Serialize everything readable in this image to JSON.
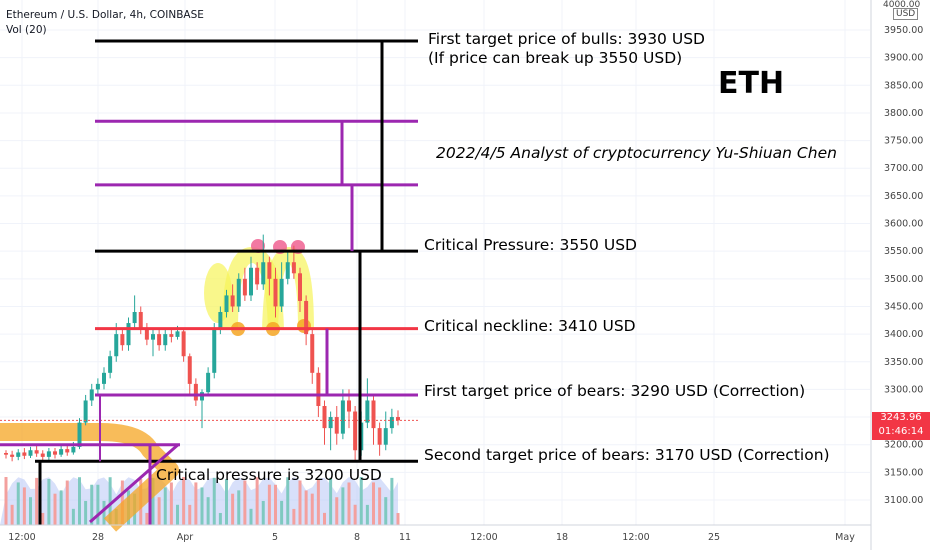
{
  "header": {
    "symbol": "Ethereum / U.S. Dollar, 4h, COINBASE",
    "volume_label": "Vol (20)"
  },
  "price_axis": {
    "currency_badge": "USD",
    "top_label": "4000.00",
    "current_price": "3243.96",
    "countdown": "01:46:14"
  },
  "annotations": {
    "eth": "ETH",
    "analyst": "2022/4/5 Analyst of cryptocurrency Yu-Shiuan Chen",
    "first_target_bulls": "First target price of bulls: 3930 USD",
    "first_target_bulls_note": "(If price can break up 3550 USD)",
    "critical_pressure": "Critical Pressure: 3550 USD",
    "critical_neckline": "Critical neckline: 3410 USD",
    "first_target_bears": "First target price of bears: 3290 USD (Correction)",
    "second_target_bears": "Second target price of bears: 3170 USD (Correction)",
    "critical_pressure_lower": "Critical pressure is 3200 USD"
  },
  "colors": {
    "up": "#26a69a",
    "down": "#ef5350",
    "volume": "#b8c6f5",
    "purple": "#9c27b0",
    "black": "#000000",
    "red_line": "#f23645",
    "orange": "#f5a623",
    "yellow": "#f7f35a",
    "price_tag": "#f23645"
  },
  "chart_data": {
    "type": "candlestick",
    "title": "Ethereum / U.S. Dollar, 4h, COINBASE",
    "y_ticks": [
      3100,
      3150,
      3200,
      3250,
      3300,
      3350,
      3400,
      3450,
      3500,
      3550,
      3600,
      3650,
      3700,
      3750,
      3800,
      3850,
      3900,
      3950
    ],
    "y_tick_labels": [
      "3100.00",
      "3150.00",
      "3200.00",
      "3250.00",
      "3300.00",
      "3350.00",
      "3400.00",
      "3450.00",
      "3500.00",
      "3550.00",
      "3600.00",
      "3650.00",
      "3700.00",
      "3750.00",
      "3800.00",
      "3850.00",
      "3900.00",
      "3950.00"
    ],
    "x_labels": [
      "12:00",
      "28",
      "Apr",
      "5",
      "8",
      "11",
      "12:00",
      "18",
      "12:00",
      "25",
      "May"
    ],
    "ylim": [
      3070,
      4000
    ],
    "candles": [
      [
        3185,
        3182,
        3190,
        3175
      ],
      [
        3182,
        3178,
        3189,
        3170
      ],
      [
        3178,
        3186,
        3192,
        3172
      ],
      [
        3186,
        3180,
        3194,
        3174
      ],
      [
        3180,
        3190,
        3196,
        3176
      ],
      [
        3190,
        3184,
        3198,
        3178
      ],
      [
        3184,
        3178,
        3190,
        3170
      ],
      [
        3178,
        3188,
        3194,
        3172
      ],
      [
        3188,
        3182,
        3194,
        3175
      ],
      [
        3182,
        3192,
        3198,
        3178
      ],
      [
        3192,
        3186,
        3199,
        3180
      ],
      [
        3186,
        3196,
        3205,
        3182
      ],
      [
        3196,
        3240,
        3248,
        3192
      ],
      [
        3240,
        3280,
        3290,
        3235
      ],
      [
        3280,
        3300,
        3310,
        3270
      ],
      [
        3300,
        3310,
        3320,
        3290
      ],
      [
        3310,
        3330,
        3340,
        3300
      ],
      [
        3330,
        3360,
        3370,
        3320
      ],
      [
        3360,
        3400,
        3420,
        3350
      ],
      [
        3400,
        3380,
        3410,
        3370
      ],
      [
        3380,
        3420,
        3430,
        3370
      ],
      [
        3420,
        3440,
        3470,
        3410
      ],
      [
        3440,
        3410,
        3450,
        3400
      ],
      [
        3410,
        3390,
        3420,
        3380
      ],
      [
        3390,
        3400,
        3410,
        3360
      ],
      [
        3400,
        3380,
        3410,
        3370
      ],
      [
        3380,
        3400,
        3410,
        3370
      ],
      [
        3400,
        3395,
        3410,
        3385
      ],
      [
        3395,
        3405,
        3415,
        3390
      ],
      [
        3405,
        3360,
        3410,
        3350
      ],
      [
        3360,
        3310,
        3365,
        3290
      ],
      [
        3310,
        3280,
        3320,
        3270
      ],
      [
        3280,
        3295,
        3300,
        3230
      ],
      [
        3295,
        3330,
        3340,
        3290
      ],
      [
        3330,
        3410,
        3420,
        3320
      ],
      [
        3410,
        3440,
        3450,
        3400
      ],
      [
        3440,
        3470,
        3480,
        3430
      ],
      [
        3470,
        3450,
        3490,
        3440
      ],
      [
        3450,
        3500,
        3510,
        3440
      ],
      [
        3500,
        3470,
        3520,
        3460
      ],
      [
        3470,
        3520,
        3540,
        3460
      ],
      [
        3520,
        3490,
        3530,
        3480
      ],
      [
        3490,
        3530,
        3580,
        3480
      ],
      [
        3530,
        3500,
        3540,
        3470
      ],
      [
        3500,
        3450,
        3520,
        3430
      ],
      [
        3450,
        3500,
        3530,
        3440
      ],
      [
        3500,
        3530,
        3550,
        3490
      ],
      [
        3530,
        3510,
        3560,
        3500
      ],
      [
        3510,
        3460,
        3520,
        3440
      ],
      [
        3460,
        3400,
        3470,
        3380
      ],
      [
        3400,
        3330,
        3410,
        3310
      ],
      [
        3330,
        3270,
        3340,
        3250
      ],
      [
        3270,
        3230,
        3280,
        3200
      ],
      [
        3230,
        3250,
        3260,
        3190
      ],
      [
        3250,
        3220,
        3270,
        3200
      ],
      [
        3220,
        3280,
        3300,
        3210
      ],
      [
        3280,
        3260,
        3300,
        3230
      ],
      [
        3260,
        3190,
        3270,
        3170
      ],
      [
        3190,
        3240,
        3260,
        3180
      ],
      [
        3240,
        3280,
        3320,
        3230
      ],
      [
        3280,
        3230,
        3290,
        3200
      ],
      [
        3230,
        3200,
        3240,
        3180
      ],
      [
        3200,
        3230,
        3260,
        3190
      ],
      [
        3230,
        3250,
        3265,
        3220
      ],
      [
        3250,
        3244,
        3262,
        3235
      ]
    ],
    "levels": [
      {
        "label": "First target price of bulls: 3930 USD",
        "value": 3930
      },
      {
        "label": "Critical Pressure: 3550 USD",
        "value": 3550
      },
      {
        "label": "Critical neckline: 3410 USD",
        "value": 3410
      },
      {
        "label": "First target price of bears: 3290 USD (Correction)",
        "value": 3290
      },
      {
        "label": "Second target price of bears: 3170 USD (Correction)",
        "value": 3170
      },
      {
        "label": "Critical pressure is 3200 USD",
        "value": 3200
      }
    ],
    "purple_levels": [
      3785,
      3670,
      3410,
      3290
    ],
    "last_price": 3243.96,
    "grid": true
  }
}
